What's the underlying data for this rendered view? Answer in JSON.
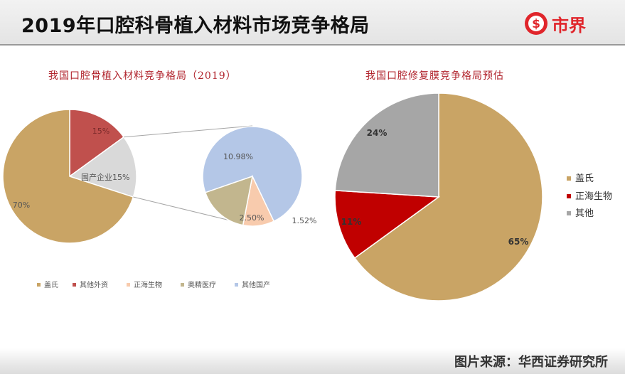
{
  "header": {
    "title": "2019年口腔科骨植入材料市场竞争格局",
    "logo_text": "市界"
  },
  "source": "图片来源：华西证券研究所",
  "colors": {
    "gold": "#c9a465",
    "red": "#c0504d",
    "lightgray": "#d9d9d9",
    "blue": "#b4c7e7",
    "khaki": "#c2b68e",
    "peach": "#f8cbad",
    "darkred": "#c00000",
    "gray": "#a6a6a6"
  },
  "chart_data": [
    {
      "type": "pie",
      "title": "我国口腔骨植入材料竞争格局（2019）",
      "slices": [
        {
          "label": "盖氏",
          "value": 70,
          "data_label": "70%",
          "color": "#c9a465"
        },
        {
          "label": "其他外资",
          "value": 15,
          "data_label": "15%",
          "color": "#c0504d"
        },
        {
          "label": "国产企业",
          "value": 15,
          "data_label": "国产企业15%",
          "color": "#d9d9d9"
        }
      ],
      "legend": [
        {
          "label": "盖氏",
          "color": "#c9a465"
        },
        {
          "label": "其他外资",
          "color": "#c0504d"
        },
        {
          "label": "正海生物",
          "color": "#f8cbad"
        },
        {
          "label": "奥精医疗",
          "color": "#c2b68e"
        },
        {
          "label": "其他国产",
          "color": "#b4c7e7"
        }
      ],
      "legend_position": "bottom"
    },
    {
      "type": "pie",
      "title": "",
      "breakdown_of": "国产企业",
      "slices": [
        {
          "label": "其他国产",
          "value": 10.98,
          "data_label": "10.98%",
          "color": "#b4c7e7"
        },
        {
          "label": "正海生物",
          "value": 1.52,
          "data_label": "1.52%",
          "color": "#f8cbad"
        },
        {
          "label": "奥精医疗",
          "value": 2.5,
          "data_label": "2.50%",
          "color": "#c2b68e"
        }
      ]
    },
    {
      "type": "pie",
      "title": "我国口腔修复膜竞争格局预估",
      "slices": [
        {
          "label": "盖氏",
          "value": 65,
          "data_label": "65%",
          "color": "#c9a465"
        },
        {
          "label": "正海生物",
          "value": 11,
          "data_label": "11%",
          "color": "#c00000"
        },
        {
          "label": "其他",
          "value": 24,
          "data_label": "24%",
          "color": "#a6a6a6"
        }
      ],
      "legend": [
        {
          "label": "盖氏",
          "color": "#c9a465"
        },
        {
          "label": "正海生物",
          "color": "#c00000"
        },
        {
          "label": "其他",
          "color": "#a6a6a6"
        }
      ],
      "legend_position": "right"
    }
  ]
}
